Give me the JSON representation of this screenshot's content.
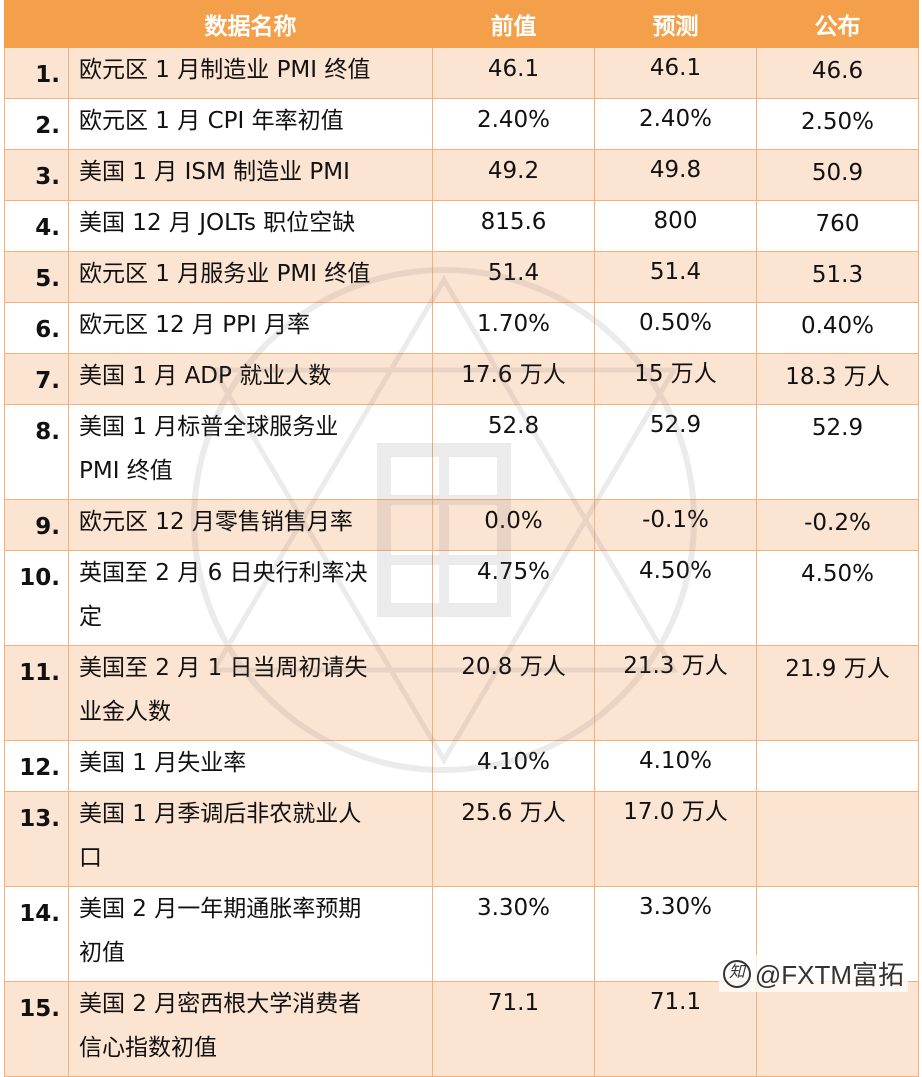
{
  "header": {
    "name": "数据名称",
    "previous": "前值",
    "forecast": "预测",
    "published": "公布"
  },
  "rows": [
    {
      "idx": "1.",
      "name": [
        "欧元区 1 月制造业 PMI 终值"
      ],
      "previous": "46.1",
      "forecast": "46.1",
      "published": "46.6"
    },
    {
      "idx": "2.",
      "name": [
        "欧元区 1 月 CPI 年率初值"
      ],
      "previous": "2.40%",
      "forecast": "2.40%",
      "published": "2.50%"
    },
    {
      "idx": "3.",
      "name": [
        "美国 1 月 ISM 制造业 PMI"
      ],
      "previous": "49.2",
      "forecast": "49.8",
      "published": "50.9"
    },
    {
      "idx": "4.",
      "name": [
        "美国 12 月 JOLTs 职位空缺"
      ],
      "previous": "815.6",
      "forecast": "800",
      "published": "760"
    },
    {
      "idx": "5.",
      "name": [
        "欧元区 1 月服务业 PMI 终值"
      ],
      "previous": "51.4",
      "forecast": "51.4",
      "published": "51.3"
    },
    {
      "idx": "6.",
      "name": [
        "欧元区 12 月 PPI 月率"
      ],
      "previous": "1.70%",
      "forecast": "0.50%",
      "published": "0.40%"
    },
    {
      "idx": "7.",
      "name": [
        "美国 1 月 ADP 就业人数"
      ],
      "previous": "17.6 万人",
      "forecast": "15 万人",
      "published": "18.3 万人"
    },
    {
      "idx": "8.",
      "name": [
        "美国 1 月标普全球服务业",
        "PMI 终值"
      ],
      "previous": "52.8",
      "forecast": "52.9",
      "published": "52.9"
    },
    {
      "idx": "9.",
      "name": [
        "欧元区 12 月零售销售月率"
      ],
      "previous": "0.0%",
      "forecast": "-0.1%",
      "published": "-0.2%"
    },
    {
      "idx": "10.",
      "name": [
        "英国至 2 月 6 日央行利率决",
        "定"
      ],
      "previous": "4.75%",
      "forecast": "4.50%",
      "published": "4.50%"
    },
    {
      "idx": "11.",
      "name": [
        "美国至 2 月 1 日当周初请失",
        "业金人数"
      ],
      "previous": "20.8 万人",
      "forecast": "21.3 万人",
      "published": "21.9 万人"
    },
    {
      "idx": "12.",
      "name": [
        "美国 1 月失业率"
      ],
      "previous": "4.10%",
      "forecast": "4.10%",
      "published": ""
    },
    {
      "idx": "13.",
      "name": [
        "美国 1 月季调后非农就业人",
        "口"
      ],
      "previous": "25.6 万人",
      "forecast": "17.0 万人",
      "published": ""
    },
    {
      "idx": "14.",
      "name": [
        "美国 2 月一年期通胀率预期",
        "初值"
      ],
      "previous": "3.30%",
      "forecast": "3.30%",
      "published": ""
    },
    {
      "idx": "15.",
      "name": [
        "美国 2 月密西根大学消费者",
        "信心指数初值"
      ],
      "previous": "71.1",
      "forecast": "71.1",
      "published": ""
    }
  ],
  "credit": "@FXTM富拓",
  "colors": {
    "header_bg": "#f4a04a",
    "shaded_row": "#fce4d2",
    "published_text": "#e8221f"
  }
}
